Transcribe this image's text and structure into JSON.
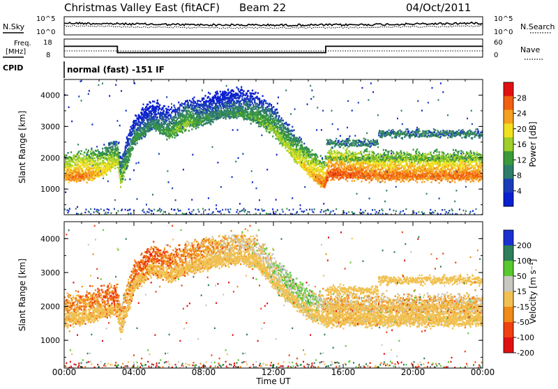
{
  "header": {
    "title": "Christmas Valley East (fitACF)",
    "beam": "Beam 22",
    "date": "04/Oct/2011"
  },
  "top_panels": {
    "nsky_label": "N.Sky",
    "nsearch_label": "N.Search",
    "noise_ticks_left": [
      "10^5",
      "10^0"
    ],
    "noise_ticks_right": [
      "10^5",
      "10^0"
    ],
    "freq_label_1": "Freq.",
    "freq_label_2": "[MHz]",
    "freq_ticks": [
      "18",
      "8"
    ],
    "nave_label": "Nave",
    "nave_ticks": [
      "60",
      "0"
    ],
    "cpid_label": "CPID",
    "cpid_text": "normal (fast) -151 IF",
    "freq_series": {
      "x": [
        0,
        3.05,
        3.05,
        15.0,
        15.0,
        24
      ],
      "y": [
        14,
        14,
        10.5,
        10.5,
        14,
        14
      ]
    }
  },
  "chart_data": [
    {
      "type": "heatmap",
      "ylabel": "Slant Range [km]",
      "xlabel": "Time UT",
      "xlim": [
        0,
        24
      ],
      "ylim": [
        180,
        4500
      ],
      "xticks": [
        "00:00",
        "04:00",
        "08:00",
        "12:00",
        "16:00",
        "20:00",
        "00:00"
      ],
      "yticks": [
        1000,
        2000,
        3000,
        4000
      ],
      "colorbar": {
        "label": "Power [dB]",
        "ticks": [
          "28",
          "24",
          "20",
          "16",
          "12",
          "8",
          "4"
        ],
        "range": [
          0,
          32
        ]
      },
      "colors": [
        "#0a1fd0",
        "#1a3cb8",
        "#2e7d6a",
        "#3a9a3a",
        "#9ecf2a",
        "#f0e020",
        "#f5a020",
        "#f06010",
        "#e01010"
      ],
      "features": [
        {
          "name": "main-scatter-band",
          "x": [
            0,
            1,
            2,
            2.6,
            3.05,
            3.2,
            4,
            5,
            6,
            7,
            8,
            9,
            10,
            11,
            12,
            13,
            14,
            14.9,
            15.1,
            16,
            18,
            20,
            22,
            24
          ],
          "y": [
            1400,
            1420,
            1550,
            1750,
            1900,
            1250,
            2600,
            3100,
            2800,
            3100,
            3200,
            3450,
            3450,
            3300,
            2900,
            2200,
            1600,
            1150,
            1500,
            1500,
            1450,
            1450,
            1450,
            1450
          ],
          "power": [
            24,
            26,
            22,
            20,
            18,
            16,
            12,
            10,
            14,
            16,
            12,
            10,
            12,
            14,
            16,
            18,
            22,
            26,
            28,
            28,
            26,
            26,
            26,
            26
          ]
        }
      ]
    },
    {
      "type": "heatmap",
      "ylabel": "Slant Range [km]",
      "xlabel": "Time UT",
      "xlim": [
        0,
        24
      ],
      "ylim": [
        180,
        4500
      ],
      "xticks": [
        "00:00",
        "04:00",
        "08:00",
        "12:00",
        "16:00",
        "20:00",
        "00:00"
      ],
      "yticks": [
        1000,
        2000,
        3000,
        4000
      ],
      "colorbar": {
        "label": "Velocity [m s⁻¹]",
        "ticks": [
          "200",
          "100",
          "50",
          "15",
          "-15",
          "-50",
          "-100",
          "-200"
        ],
        "range": [
          -250,
          250
        ]
      },
      "colors": [
        "#1a2fd0",
        "#2c7d5a",
        "#58c830",
        "#c8c8c0",
        "#f0c050",
        "#f08a18",
        "#f04010",
        "#e01010"
      ],
      "features": [
        {
          "name": "ground-scatter-band",
          "x": [
            0,
            1,
            2,
            3,
            3.2,
            4,
            5,
            6,
            7,
            8,
            9,
            10,
            11,
            12,
            13,
            14,
            15,
            16,
            18,
            20,
            22,
            24
          ],
          "y": [
            1600,
            1650,
            1800,
            1900,
            1300,
            2600,
            3100,
            2900,
            3100,
            3250,
            3350,
            3450,
            3300,
            2700,
            2200,
            1800,
            1600,
            1600,
            1600,
            1600,
            1600,
            1600
          ],
          "velocity": [
            -20,
            -30,
            -40,
            -60,
            0,
            -50,
            -60,
            -40,
            -30,
            -20,
            0,
            0,
            10,
            30,
            50,
            60,
            0,
            0,
            0,
            0,
            0,
            0
          ]
        }
      ]
    }
  ]
}
